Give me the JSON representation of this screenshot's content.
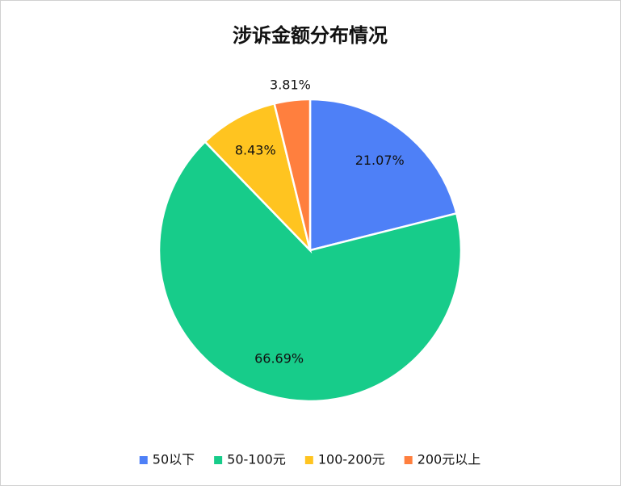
{
  "chart_data": {
    "type": "pie",
    "title": "涉诉金额分布情况",
    "categories": [
      "50以下",
      "50-100元",
      "100-200元",
      "200元以上"
    ],
    "values": [
      21.07,
      66.69,
      8.43,
      3.81
    ],
    "value_labels": [
      "21.07%",
      "66.69%",
      "8.43%",
      "3.81%"
    ],
    "colors": [
      "#4e80f7",
      "#17cc8a",
      "#ffc420",
      "#ff7f3e"
    ],
    "legend": "bottom"
  }
}
